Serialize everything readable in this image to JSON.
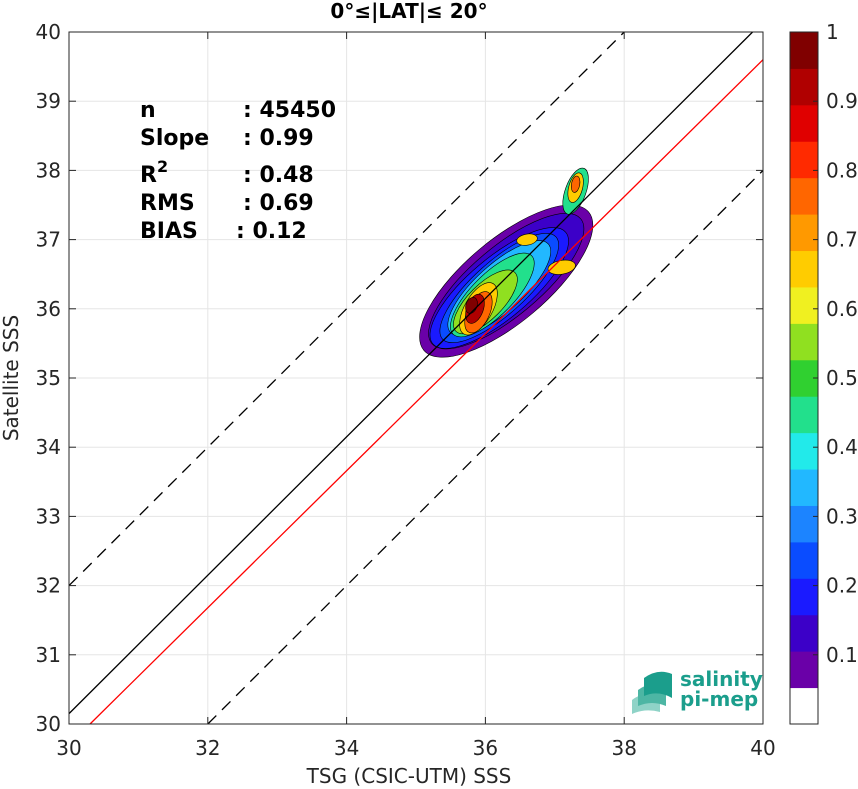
{
  "chart_data": {
    "type": "heatmap",
    "title": "0°≤|LAT|≤ 20°",
    "xlabel": "TSG (CSIC-UTM) SSS",
    "ylabel": "Satellite SSS",
    "xlim": [
      30,
      40
    ],
    "ylim": [
      30,
      40
    ],
    "xticks": [
      "30",
      "32",
      "34",
      "36",
      "38",
      "40"
    ],
    "yticks": [
      "30",
      "31",
      "32",
      "33",
      "34",
      "35",
      "36",
      "37",
      "38",
      "39",
      "40"
    ],
    "grid": true,
    "stats": [
      {
        "label": "n",
        "value": ": 45450"
      },
      {
        "label": "Slope",
        "value": ": 0.99"
      },
      {
        "label": "R",
        "sup": "2",
        "value": ": 0.48"
      },
      {
        "label": "RMS",
        "value": ": 0.69"
      },
      {
        "label": "BIAS",
        "value": ": 0.12"
      }
    ],
    "lines": {
      "identity": {
        "color": "#000000",
        "slope": 1,
        "intercept": 0
      },
      "fit": {
        "color": "#ff0000",
        "slope": 0.99,
        "intercept": 0.12
      },
      "upper_bound": {
        "color": "#000000",
        "dash": true,
        "offset": 2
      },
      "lower_bound": {
        "color": "#000000",
        "dash": true,
        "offset": -2
      }
    },
    "density_blobs": [
      {
        "cx": 36.3,
        "cy": 36.4,
        "rx": 1.55,
        "ry": 0.6,
        "angle": 40,
        "level": 0.05
      },
      {
        "cx": 36.3,
        "cy": 36.4,
        "rx": 1.4,
        "ry": 0.5,
        "angle": 40,
        "level": 0.1
      },
      {
        "cx": 36.2,
        "cy": 36.3,
        "rx": 1.25,
        "ry": 0.44,
        "angle": 40,
        "level": 0.15
      },
      {
        "cx": 36.2,
        "cy": 36.3,
        "rx": 1.1,
        "ry": 0.38,
        "angle": 42,
        "level": 0.2
      },
      {
        "cx": 36.2,
        "cy": 36.3,
        "rx": 0.95,
        "ry": 0.34,
        "angle": 42,
        "level": 0.3
      },
      {
        "cx": 36.1,
        "cy": 36.2,
        "rx": 0.8,
        "ry": 0.3,
        "angle": 45,
        "level": 0.4
      },
      {
        "cx": 36.0,
        "cy": 36.1,
        "rx": 0.6,
        "ry": 0.25,
        "angle": 45,
        "level": 0.5
      },
      {
        "cx": 35.9,
        "cy": 36.0,
        "rx": 0.42,
        "ry": 0.2,
        "angle": 60,
        "level": 0.6
      },
      {
        "cx": 35.9,
        "cy": 35.95,
        "rx": 0.32,
        "ry": 0.16,
        "angle": 65,
        "level": 0.7
      },
      {
        "cx": 35.85,
        "cy": 36.0,
        "rx": 0.22,
        "ry": 0.12,
        "angle": 70,
        "level": 0.85
      },
      {
        "cx": 35.8,
        "cy": 36.05,
        "rx": 0.12,
        "ry": 0.08,
        "angle": 70,
        "level": 0.95
      },
      {
        "cx": 37.3,
        "cy": 37.7,
        "rx": 0.35,
        "ry": 0.15,
        "angle": 70,
        "level": 0.4
      },
      {
        "cx": 37.3,
        "cy": 37.75,
        "rx": 0.22,
        "ry": 0.1,
        "angle": 75,
        "level": 0.6
      },
      {
        "cx": 37.3,
        "cy": 37.8,
        "rx": 0.12,
        "ry": 0.06,
        "angle": 80,
        "level": 0.7
      },
      {
        "cx": 37.1,
        "cy": 36.6,
        "rx": 0.2,
        "ry": 0.1,
        "angle": 10,
        "level": 0.6
      },
      {
        "cx": 36.6,
        "cy": 37.0,
        "rx": 0.15,
        "ry": 0.08,
        "angle": 10,
        "level": 0.6
      }
    ],
    "colorbar": {
      "ticks": [
        "0.1",
        "0.2",
        "0.3",
        "0.4",
        "0.5",
        "0.6",
        "0.7",
        "0.8",
        "0.9",
        "1"
      ],
      "colors": [
        "#ffffff",
        "#6a00a8",
        "#3c00c8",
        "#1a1aff",
        "#0a4cff",
        "#1c84ff",
        "#22b8ff",
        "#22eaea",
        "#22e08c",
        "#30d030",
        "#90e020",
        "#f0f020",
        "#ffcc00",
        "#ff9900",
        "#ff6600",
        "#ff2a00",
        "#e00000",
        "#b00000",
        "#800000"
      ]
    }
  },
  "logo": {
    "line1": "salinity",
    "line2": "pi-mep"
  }
}
